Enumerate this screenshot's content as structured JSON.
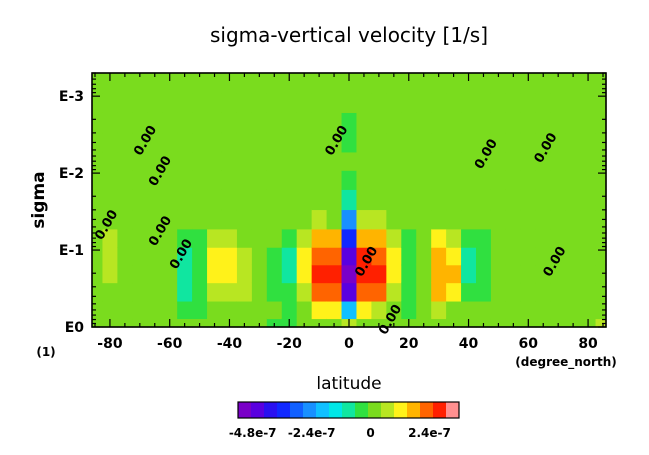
{
  "chart_data": {
    "type": "heatmap",
    "title": "sigma-vertical velocity [1/s]",
    "xlabel": "latitude",
    "ylabel": "sigma",
    "x_unit_label": "(degree_north)",
    "y_unit_label": "(1)",
    "xlim": [
      -86,
      86
    ],
    "ylim": [
      1,
      0.0005
    ],
    "y_scale": "log",
    "x_ticks": [
      -80,
      -60,
      -40,
      -20,
      0,
      20,
      40,
      60,
      80
    ],
    "y_ticks": [
      {
        "value": 1,
        "label": "E0"
      },
      {
        "value": 0.1,
        "label": "E-1"
      },
      {
        "value": 0.01,
        "label": "E-2"
      },
      {
        "value": 0.001,
        "label": "E-3"
      }
    ],
    "contour_labels": [
      {
        "text": "0.00",
        "lat": -80,
        "sigma": 0.05
      },
      {
        "text": "0.00",
        "lat": -67,
        "sigma": 0.004
      },
      {
        "text": "0.00",
        "lat": -62,
        "sigma": 0.01
      },
      {
        "text": "0.00",
        "lat": -55,
        "sigma": 0.12
      },
      {
        "text": "0.00",
        "lat": -62,
        "sigma": 0.06
      },
      {
        "text": "0.00",
        "lat": -3,
        "sigma": 0.004
      },
      {
        "text": "0.00",
        "lat": 7,
        "sigma": 0.15
      },
      {
        "text": "0.00",
        "lat": 15,
        "sigma": 0.85
      },
      {
        "text": "0.00",
        "lat": 47,
        "sigma": 0.006
      },
      {
        "text": "0.00",
        "lat": 67,
        "sigma": 0.005
      },
      {
        "text": "0.00",
        "lat": 70,
        "sigma": 0.15
      }
    ],
    "colorbar": {
      "min": -5.4e-07,
      "max": 3.6e-07,
      "tick_labels": [
        "-4.8e-7",
        "-2.4e-7",
        "0",
        "2.4e-7"
      ],
      "tick_values": [
        -4.8e-07,
        -2.4e-07,
        0,
        2.4e-07
      ],
      "colors": [
        "#7a00c8",
        "#5a00e0",
        "#2a10f0",
        "#1028ff",
        "#1060ff",
        "#1890ff",
        "#10c0ff",
        "#00e6e6",
        "#10e6a0",
        "#30e040",
        "#7adc1e",
        "#b8e622",
        "#fff21a",
        "#ffb400",
        "#ff6400",
        "#ff2000",
        "#ff9090"
      ]
    },
    "grid": false,
    "grid_latitudes": [
      -85,
      -80,
      -75,
      -70,
      -65,
      -60,
      -55,
      -50,
      -45,
      -40,
      -35,
      -30,
      -25,
      -20,
      -15,
      -10,
      -5,
      0,
      5,
      10,
      15,
      20,
      25,
      30,
      35,
      40,
      45,
      50,
      55,
      60,
      65,
      70,
      75,
      80,
      85
    ],
    "grid_sigma": [
      1,
      0.6,
      0.35,
      0.2,
      0.12,
      0.07,
      0.04,
      0.022,
      0.012,
      0.007,
      0.004,
      0.0022,
      0.0012,
      0.0007
    ],
    "values_1e7": [
      [
        0.1,
        0.0,
        0.0,
        0.1,
        0.3,
        0.4,
        0.4,
        0.3,
        0.0,
        0.0,
        0.0,
        0.1,
        0.1,
        0.0
      ],
      [
        0.1,
        0.1,
        0.3,
        0.6,
        0.9,
        0.6,
        0.3,
        0.1,
        0.0,
        0.0,
        0.1,
        0.1,
        0.1,
        0.0
      ],
      [
        0.1,
        0.0,
        0.1,
        0.3,
        0.4,
        0.2,
        0.0,
        -0.1,
        -0.1,
        0.0,
        0.0,
        0.1,
        0.1,
        0.0
      ],
      [
        0.0,
        -0.1,
        -0.1,
        0.0,
        0.0,
        -0.1,
        -0.1,
        -0.1,
        -0.1,
        0.0,
        0.0,
        0.1,
        0.1,
        0.0
      ],
      [
        0.0,
        0.0,
        0.0,
        0.0,
        0.0,
        0.1,
        0.1,
        0.1,
        0.0,
        0.0,
        0.1,
        0.1,
        0.0,
        0.0
      ],
      [
        0.0,
        0.0,
        0.1,
        0.1,
        0.1,
        0.1,
        0.1,
        0.0,
        0.0,
        0.0,
        0.1,
        0.1,
        0.0,
        0.0
      ],
      [
        0.0,
        -0.3,
        -0.7,
        -0.9,
        -0.7,
        -0.3,
        -0.1,
        0.0,
        0.0,
        0.0,
        0.0,
        0.0,
        0.0,
        0.0
      ],
      [
        0.1,
        -0.2,
        -0.5,
        -0.6,
        -0.4,
        -0.2,
        0.0,
        0.0,
        0.0,
        0.0,
        0.0,
        0.0,
        0.0,
        0.0
      ],
      [
        0.1,
        0.2,
        0.5,
        1.2,
        1.1,
        0.6,
        0.2,
        0.0,
        0.0,
        0.0,
        0.0,
        0.0,
        0.0,
        0.0
      ],
      [
        0.1,
        0.3,
        0.9,
        1.4,
        1.2,
        0.7,
        0.2,
        0.0,
        0.0,
        0.0,
        0.0,
        0.0,
        0.0,
        0.0
      ],
      [
        0.2,
        0.3,
        0.6,
        0.9,
        0.7,
        0.4,
        0.1,
        0.0,
        0.0,
        0.0,
        0.0,
        0.0,
        0.0,
        0.0
      ],
      [
        0.1,
        0.1,
        0.2,
        0.3,
        0.2,
        0.1,
        0.0,
        0.0,
        0.0,
        0.0,
        0.0,
        0.0,
        0.0,
        0.0
      ],
      [
        -0.2,
        -0.1,
        -0.2,
        -0.4,
        -0.3,
        -0.1,
        0.0,
        0.0,
        0.0,
        0.0,
        0.0,
        0.0,
        0.0,
        0.0
      ],
      [
        -0.5,
        -0.3,
        -0.6,
        -0.9,
        -0.8,
        -0.4,
        -0.1,
        0.0,
        0.0,
        0.0,
        0.0,
        0.0,
        0.0,
        0.0
      ],
      [
        0.0,
        0.2,
        0.8,
        1.2,
        1.3,
        0.9,
        0.3,
        0.0,
        0.0,
        0.0,
        0.0,
        0.0,
        0.0,
        0.0
      ],
      [
        0.3,
        1.0,
        2.4,
        2.8,
        2.5,
        1.8,
        0.5,
        0.0,
        0.0,
        0.0,
        0.0,
        0.0,
        0.0,
        0.0
      ],
      [
        0.2,
        1.2,
        2.2,
        2.6,
        2.4,
        1.5,
        0.4,
        0.0,
        -0.1,
        -0.1,
        -0.1,
        0.0,
        0.0,
        0.0
      ],
      [
        0.5,
        -2.0,
        -4.4,
        -5.0,
        -4.5,
        -3.6,
        -2.4,
        -1.0,
        -0.2,
        -0.1,
        -0.2,
        -0.2,
        -0.1,
        0.0
      ],
      [
        0.1,
        1.0,
        2.5,
        3.0,
        2.7,
        1.8,
        0.5,
        0.0,
        -0.1,
        -0.1,
        -0.1,
        0.0,
        0.0,
        0.0
      ],
      [
        0.3,
        0.8,
        2.2,
        2.8,
        2.4,
        1.6,
        0.5,
        0.0,
        0.0,
        0.0,
        0.0,
        0.0,
        0.0,
        0.0
      ],
      [
        0.0,
        0.2,
        0.8,
        1.2,
        1.0,
        0.6,
        0.2,
        0.0,
        0.0,
        0.0,
        0.0,
        0.0,
        0.0,
        0.0
      ],
      [
        -0.1,
        -0.2,
        -0.4,
        -0.6,
        -0.5,
        -0.3,
        -0.1,
        0.0,
        0.0,
        0.0,
        0.0,
        0.0,
        0.0,
        0.0
      ],
      [
        0.0,
        0.0,
        0.1,
        0.3,
        0.3,
        0.2,
        0.0,
        0.0,
        0.0,
        0.0,
        0.1,
        0.1,
        0.0,
        0.0
      ],
      [
        0.1,
        0.5,
        1.6,
        2.0,
        1.7,
        1.0,
        0.3,
        0.0,
        0.0,
        0.1,
        0.3,
        0.3,
        0.1,
        0.0
      ],
      [
        0.1,
        0.3,
        1.1,
        1.5,
        1.3,
        0.7,
        0.2,
        0.0,
        0.0,
        0.1,
        0.2,
        0.2,
        0.1,
        0.0
      ],
      [
        0.0,
        -0.1,
        -0.5,
        -1.0,
        -0.9,
        -0.5,
        -0.1,
        0.0,
        0.0,
        0.0,
        0.0,
        0.0,
        0.0,
        0.0
      ],
      [
        0.0,
        0.0,
        -0.2,
        -0.5,
        -0.4,
        -0.2,
        0.0,
        0.0,
        0.0,
        0.0,
        0.1,
        0.1,
        0.0,
        0.0
      ],
      [
        0.0,
        0.0,
        0.1,
        0.1,
        0.1,
        0.1,
        0.0,
        0.0,
        0.0,
        0.0,
        0.1,
        0.1,
        0.0,
        0.0
      ],
      [
        0.0,
        0.0,
        0.0,
        0.0,
        0.0,
        0.0,
        0.0,
        0.0,
        0.0,
        0.0,
        0.1,
        0.2,
        0.1,
        0.0
      ],
      [
        0.0,
        0.0,
        -0.1,
        -0.1,
        -0.1,
        0.0,
        0.0,
        0.0,
        0.0,
        0.0,
        0.0,
        0.0,
        0.0,
        0.0
      ],
      [
        0.0,
        0.0,
        0.0,
        0.0,
        0.0,
        0.0,
        0.0,
        0.0,
        0.1,
        0.1,
        0.0,
        0.0,
        0.0,
        0.0
      ],
      [
        0.1,
        0.0,
        0.0,
        0.0,
        0.0,
        0.0,
        0.0,
        0.0,
        0.1,
        0.1,
        0.0,
        0.0,
        0.0,
        0.0
      ],
      [
        0.2,
        0.0,
        0.0,
        0.0,
        0.0,
        0.0,
        0.0,
        0.0,
        0.0,
        0.0,
        0.0,
        0.0,
        0.0,
        0.0
      ],
      [
        0.3,
        0.1,
        0.0,
        0.0,
        0.0,
        0.0,
        0.0,
        0.0,
        0.0,
        0.0,
        0.0,
        0.0,
        0.0,
        0.0
      ],
      [
        0.8,
        0.2,
        0.0,
        0.0,
        0.0,
        0.0,
        0.0,
        0.0,
        0.0,
        0.0,
        0.0,
        0.0,
        0.0,
        0.0
      ]
    ]
  }
}
